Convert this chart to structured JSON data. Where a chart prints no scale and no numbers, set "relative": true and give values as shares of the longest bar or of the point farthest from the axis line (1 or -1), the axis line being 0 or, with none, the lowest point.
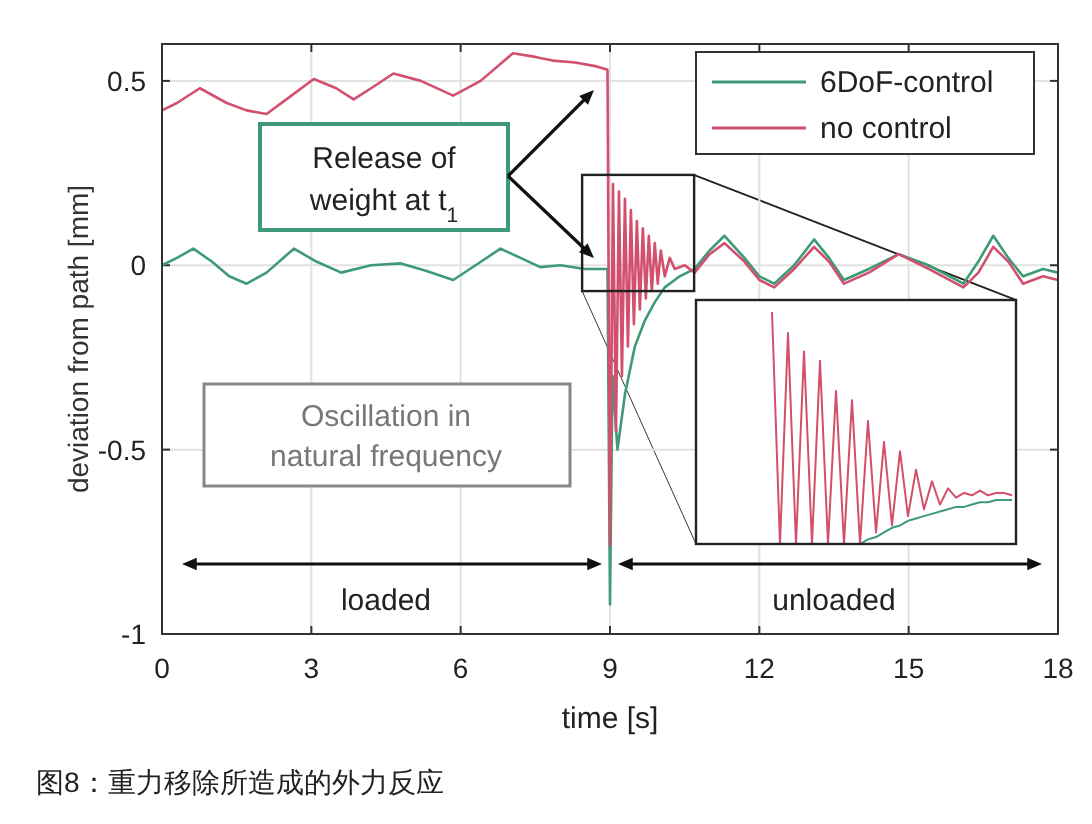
{
  "chart_data": [
    {
      "type": "line",
      "xlabel": "time [s]",
      "ylabel": "deviation from path [mm]",
      "xlim": [
        0,
        18
      ],
      "xticks": [
        0,
        3,
        6,
        9,
        12,
        15,
        18
      ],
      "ylim": [
        -1,
        0.6
      ],
      "yticks": [
        -1,
        -0.5,
        0,
        0.5
      ],
      "grid": true,
      "legend": "top right",
      "annotations": [
        "Release of weight at t$_{1}$",
        "Oscillation in natural frequency",
        "loaded",
        "unloaded",
        "图8：重力移除所造成的外力反应"
      ],
      "series": [
        {
          "name": "6DoF-control",
          "color": "#3f9a78",
          "x": [
            0,
            0.3,
            0.63,
            1.0,
            1.35,
            1.7,
            2.1,
            2.65,
            3.1,
            3.6,
            4.2,
            4.8,
            5.3,
            5.85,
            6.3,
            6.8,
            7.2,
            7.6,
            8.0,
            8.5,
            8.95,
            9.0,
            9.05,
            9.15,
            9.3,
            9.5,
            9.7,
            9.9,
            10.1,
            10.4,
            10.7,
            11.0,
            11.3,
            11.7,
            12.0,
            12.3,
            12.7,
            13.1,
            13.4,
            13.7,
            14.2,
            14.8,
            15.4,
            16.1,
            16.4,
            16.7,
            17.0,
            17.3,
            17.7,
            18
          ],
          "values": [
            0,
            0.02,
            0.045,
            0.01,
            -0.03,
            -0.05,
            -0.02,
            0.045,
            0.01,
            -0.02,
            0.0,
            0.005,
            -0.015,
            -0.04,
            0.0,
            0.045,
            0.02,
            -0.005,
            0.0,
            -0.01,
            -0.01,
            -0.92,
            -0.3,
            -0.5,
            -0.35,
            -0.22,
            -0.15,
            -0.1,
            -0.06,
            -0.03,
            -0.01,
            0.04,
            0.08,
            0.02,
            -0.03,
            -0.05,
            0.0,
            0.07,
            0.02,
            -0.04,
            -0.01,
            0.03,
            0.0,
            -0.05,
            0.01,
            0.08,
            0.02,
            -0.03,
            -0.01,
            -0.02
          ]
        },
        {
          "name": "no control",
          "color": "#d2506e",
          "x": [
            0,
            0.3,
            0.76,
            1.3,
            1.7,
            2.1,
            2.6,
            3.05,
            3.5,
            3.85,
            4.2,
            4.65,
            5.2,
            5.85,
            6.4,
            7.05,
            7.5,
            7.85,
            8.3,
            8.7,
            8.95,
            9.0,
            9.06,
            9.12,
            9.18,
            9.24,
            9.3,
            9.36,
            9.42,
            9.48,
            9.54,
            9.6,
            9.66,
            9.72,
            9.78,
            9.84,
            9.9,
            9.96,
            10.02,
            10.1,
            10.2,
            10.3,
            10.5,
            10.7,
            11.0,
            11.3,
            11.7,
            12.0,
            12.3,
            12.7,
            13.1,
            13.4,
            13.7,
            14.2,
            14.8,
            15.4,
            16.1,
            16.4,
            16.7,
            17.0,
            17.3,
            17.7,
            18
          ],
          "values": [
            0.42,
            0.44,
            0.48,
            0.44,
            0.42,
            0.41,
            0.46,
            0.505,
            0.48,
            0.45,
            0.48,
            0.52,
            0.5,
            0.46,
            0.5,
            0.575,
            0.565,
            0.555,
            0.55,
            0.54,
            0.53,
            -0.76,
            0.22,
            -0.45,
            0.2,
            -0.3,
            0.18,
            -0.22,
            0.15,
            -0.16,
            0.12,
            -0.12,
            0.1,
            -0.09,
            0.08,
            -0.07,
            0.06,
            -0.05,
            0.04,
            -0.03,
            0.02,
            -0.01,
            0.0,
            -0.02,
            0.03,
            0.06,
            0.01,
            -0.04,
            -0.06,
            -0.01,
            0.05,
            0.01,
            -0.05,
            -0.02,
            0.03,
            -0.01,
            -0.06,
            -0.02,
            0.05,
            0.01,
            -0.05,
            -0.03,
            -0.04
          ]
        }
      ]
    },
    {
      "type": "line",
      "relative": true,
      "categories": [
        null,
        null,
        null,
        null,
        null,
        null,
        null,
        null,
        null,
        null,
        null,
        null,
        null,
        null,
        null,
        null,
        null,
        null,
        null,
        null,
        null,
        null,
        null,
        null,
        null,
        null,
        null,
        null,
        null,
        null,
        null,
        null,
        null,
        null,
        null,
        null,
        null,
        null,
        null,
        null
      ],
      "series": [
        {
          "color": "#3f9a78",
          "values": [
            null,
            null,
            null,
            null,
            null,
            null,
            null,
            null,
            null,
            null,
            null,
            null,
            null,
            null,
            null,
            null,
            null,
            null,
            null,
            null,
            0,
            0.02,
            0.03,
            0.05,
            0.07,
            0.08,
            0.1,
            0.11,
            0.12,
            0.13,
            0.14,
            0.15,
            0.16,
            0.16,
            0.17,
            0.18,
            0.18,
            0.19,
            0.19,
            0.19
          ]
        },
        {
          "color": "#d2506e",
          "values": [
            null,
            null,
            null,
            null,
            null,
            null,
            null,
            null,
            null,
            1,
            0,
            0.91,
            0,
            0.83,
            0,
            0.79,
            0,
            0.66,
            0,
            0.62,
            0,
            0.53,
            0.05,
            0.44,
            0.08,
            0.4,
            0.12,
            0.32,
            0.15,
            0.27,
            0.17,
            0.24,
            0.2,
            0.22,
            0.21,
            0.23,
            0.21,
            0.22,
            0.22,
            0.21
          ]
        }
      ]
    }
  ]
}
